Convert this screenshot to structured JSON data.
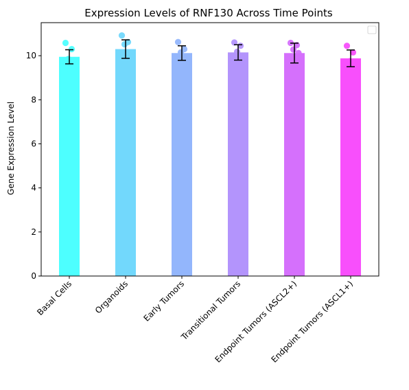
{
  "chart_data": {
    "type": "bar",
    "title": "Expression Levels of RNF130 Across Time Points",
    "xlabel": "",
    "ylabel": "Gene Expression Level",
    "ylim": [
      0,
      11.5
    ],
    "yticks": [
      0,
      2,
      4,
      6,
      8,
      10
    ],
    "grid": false,
    "legend": "top-right (empty)",
    "categories": [
      "Basal Cells",
      "Organoids",
      "Early Tumors",
      "Transitional Tumors",
      "Endpoint Tumors (ASCL2+)",
      "Endpoint Tumors (ASCL1+)"
    ],
    "values": [
      9.95,
      10.3,
      10.12,
      10.15,
      10.12,
      9.88
    ],
    "errors": [
      0.32,
      0.42,
      0.33,
      0.35,
      0.45,
      0.38
    ],
    "colors": [
      "#4dffff",
      "#72d8fc",
      "#93b6fc",
      "#b394fc",
      "#d570fc",
      "#f84ffc"
    ],
    "points": [
      [
        10.58,
        10.3,
        9.85,
        9.78,
        9.42
      ],
      [
        10.92,
        10.62,
        10.52,
        9.82,
        9.6
      ],
      [
        10.62,
        10.3,
        10.15,
        9.95,
        9.58
      ],
      [
        10.6,
        10.45,
        10.18,
        9.72,
        9.6
      ],
      [
        10.58,
        10.48,
        10.28,
        10.12,
        8.95
      ],
      [
        10.45,
        10.15,
        9.75,
        9.6,
        9.48
      ]
    ]
  }
}
